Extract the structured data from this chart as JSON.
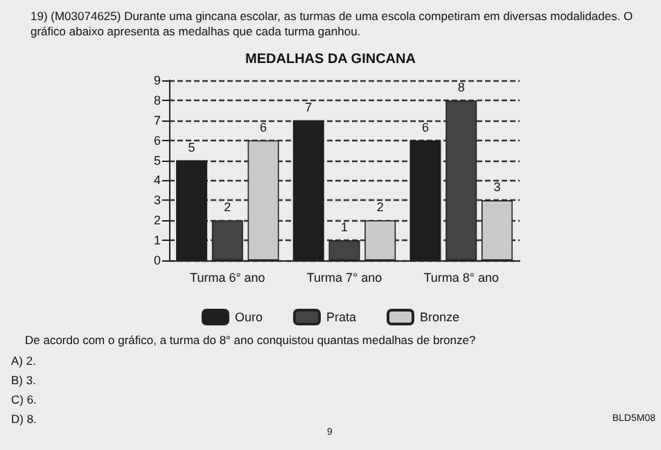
{
  "chart_data": {
    "type": "bar",
    "title": "MEDALHAS DA GINCANA",
    "categories": [
      "Turma 6° ano",
      "Turma 7° ano",
      "Turma 8° ano"
    ],
    "series": [
      {
        "name": "Ouro",
        "color": "#1e1e1e",
        "values": [
          5,
          7,
          6
        ]
      },
      {
        "name": "Prata",
        "color": "#444444",
        "values": [
          2,
          1,
          8
        ]
      },
      {
        "name": "Bronze",
        "color": "#c9c9c9",
        "values": [
          6,
          2,
          3
        ]
      }
    ],
    "ylim": [
      0,
      9
    ],
    "yticks": [
      0,
      1,
      2,
      3,
      4,
      5,
      6,
      7,
      8,
      9
    ],
    "grid": "y",
    "data_labels": true,
    "legend": "bottom",
    "annotations": [
      "19) (M03074625) Durante uma gincana escolar, as turmas de uma escola competiram em diversas modalidades. O gráfico abaixo apresenta as medalhas que cada turma ganhou.",
      "De acordo com o gráfico, a turma do 8° ano conquistou quantas medalhas de bronze?",
      "A) 2.",
      "B) 3.",
      "C) 6.",
      "D) 8.",
      "BLD5M08",
      "9"
    ]
  }
}
